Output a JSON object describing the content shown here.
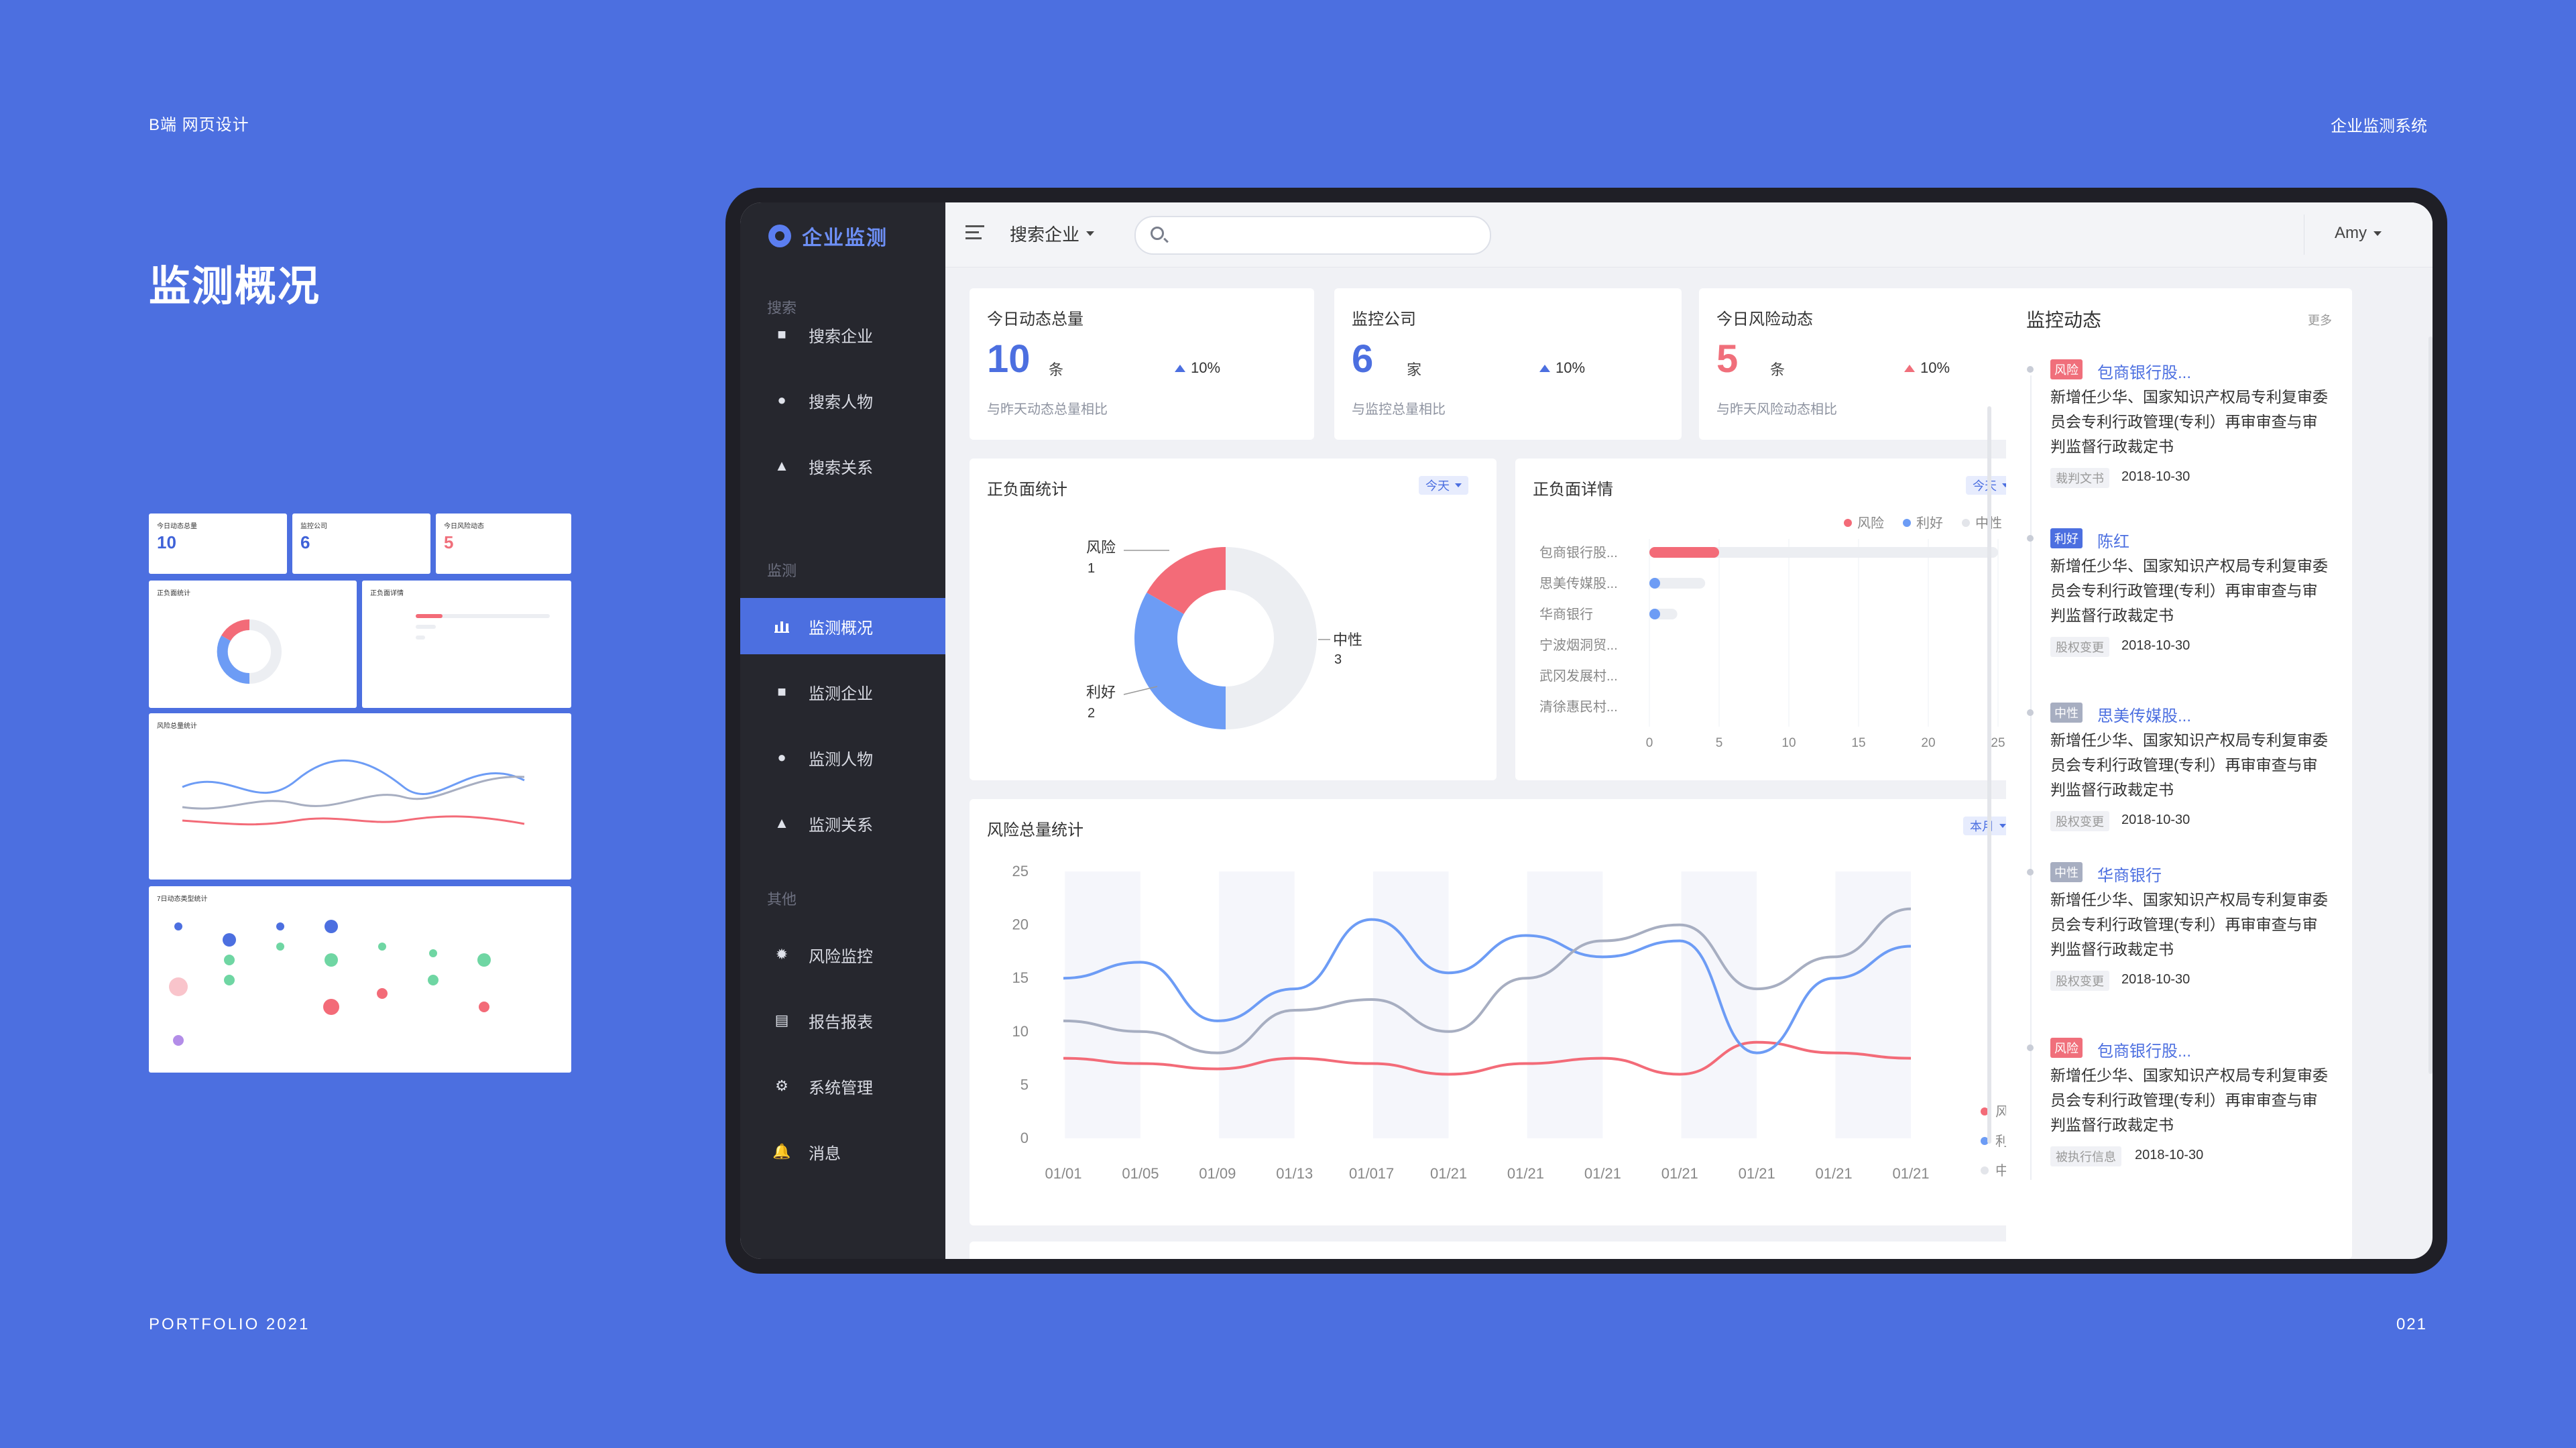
{
  "page": {
    "brand": "B端 网页设计",
    "project": "企业监测系统",
    "heading": "监测概况",
    "footer_left": "PORTFOLIO 2021",
    "page_number": "021"
  },
  "thumbnails": {
    "kpi_titles": [
      "今日动态总量",
      "监控公司",
      "今日风险动态"
    ],
    "kpi_values": [
      "10",
      "6",
      "5"
    ],
    "panel_titles": [
      "正负面统计",
      "正负面详情",
      "风险总量统计",
      "7日动态类型统计"
    ]
  },
  "sidebar": {
    "brand": "企业监测",
    "sections": [
      "搜索",
      "监测",
      "其他"
    ],
    "items": [
      {
        "label": "搜索企业",
        "icon": "building-search-icon"
      },
      {
        "label": "搜索人物",
        "icon": "person-search-icon"
      },
      {
        "label": "搜索关系",
        "icon": "relation-search-icon"
      },
      {
        "label": "监测概况",
        "icon": "bar-chart-icon",
        "active": true
      },
      {
        "label": "监测企业",
        "icon": "building-monitor-icon"
      },
      {
        "label": "监测人物",
        "icon": "people-monitor-icon"
      },
      {
        "label": "监测关系",
        "icon": "relation-monitor-icon"
      },
      {
        "label": "风险监控",
        "icon": "sun-alert-icon"
      },
      {
        "label": "报告报表",
        "icon": "report-icon"
      },
      {
        "label": "系统管理",
        "icon": "gear-icon"
      },
      {
        "label": "消息",
        "icon": "bell-icon"
      }
    ]
  },
  "topbar": {
    "company_select": "搜索企业",
    "search_placeholder": "",
    "user": "Amy"
  },
  "kpis": [
    {
      "title": "今日动态总量",
      "value": "10",
      "unit": "条",
      "trend": "10%",
      "desc": "与昨天动态总量相比",
      "color": "#4c6fe0"
    },
    {
      "title": "监控公司",
      "value": "6",
      "unit": "家",
      "trend": "10%",
      "desc": "与监控总量相比",
      "color": "#4c6fe0"
    },
    {
      "title": "今日风险动态",
      "value": "5",
      "unit": "条",
      "trend": "10%",
      "desc": "与昨天风险动态相比",
      "color": "#f06f7b"
    }
  ],
  "sentiment_stats": {
    "title": "正负面统计",
    "range": "今天",
    "labels": [
      {
        "name": "风险",
        "count": "1"
      },
      {
        "name": "中性",
        "count": "3"
      },
      {
        "name": "利好",
        "count": "2"
      }
    ]
  },
  "sentiment_detail": {
    "title": "正负面详情",
    "range": "今天",
    "legend": [
      "风险",
      "利好",
      "中性"
    ],
    "companies": [
      "包商银行股...",
      "思美传媒股...",
      "华商银行",
      "宁波烟洞贸...",
      "武冈发展村...",
      "清徐惠民村..."
    ],
    "ticks": [
      "0",
      "5",
      "10",
      "15",
      "20",
      "25"
    ]
  },
  "risk_total": {
    "title": "风险总量统计",
    "range": "本月",
    "y_ticks": [
      "25",
      "20",
      "15",
      "10",
      "5",
      "0"
    ],
    "x_ticks": [
      "01/01",
      "01/05",
      "01/09",
      "01/13",
      "01/017",
      "01/21",
      "01/21",
      "01/21",
      "01/21",
      "01/21",
      "01/21",
      "01/21"
    ],
    "legend": [
      "风险",
      "利好",
      "中性"
    ]
  },
  "chart_data": [
    {
      "type": "pie",
      "title": "正负面统计",
      "categories": [
        "风险",
        "中性",
        "利好"
      ],
      "values": [
        1,
        3,
        2
      ],
      "colors": [
        "#f36b78",
        "#eceef2",
        "#6d9cf5"
      ]
    },
    {
      "type": "bar",
      "title": "正负面详情",
      "categories": [
        "包商银行股...",
        "思美传媒股...",
        "华商银行",
        "宁波烟洞贸...",
        "武冈发展村...",
        "清徐惠民村..."
      ],
      "series": [
        {
          "name": "风险",
          "values": [
            5,
            0,
            0,
            0,
            0,
            0
          ]
        },
        {
          "name": "利好",
          "values": [
            1,
            1,
            1,
            0,
            0,
            0
          ]
        },
        {
          "name": "中性",
          "values": [
            19,
            3,
            1,
            0,
            0,
            0
          ]
        }
      ],
      "xlim": [
        0,
        25
      ]
    },
    {
      "type": "line",
      "title": "风险总量统计",
      "x": [
        "01/01",
        "01/05",
        "01/09",
        "01/13",
        "01/017",
        "01/21",
        "01/21",
        "01/21",
        "01/21",
        "01/21",
        "01/21",
        "01/21"
      ],
      "ylim": [
        0,
        25
      ],
      "series": [
        {
          "name": "风险",
          "values": [
            7.5,
            7,
            6.5,
            7.5,
            7,
            6,
            7,
            7.5,
            6,
            9,
            8,
            7.5
          ]
        },
        {
          "name": "利好",
          "values": [
            15,
            16.5,
            11,
            14,
            20.5,
            15.5,
            19,
            17,
            18.5,
            8,
            15,
            18
          ]
        },
        {
          "name": "中性",
          "values": [
            11,
            10,
            8,
            12,
            13,
            10,
            15,
            18.5,
            20,
            14,
            17,
            21.5
          ]
        }
      ]
    }
  ],
  "monitor_feed": {
    "title": "监控动态",
    "more": "更多",
    "items": [
      {
        "tag": "风险",
        "tag_color": "#f06f7b",
        "name": "包商银行股...",
        "body": "新增任少华、国家知识产权局专利复审委员会专利行政管理(专利）再审审查与审判监督行政裁定书",
        "chip": "裁判文书",
        "date": "2018-10-30"
      },
      {
        "tag": "利好",
        "tag_color": "#4c6fe0",
        "name": "陈红",
        "body": "新增任少华、国家知识产权局专利复审委员会专利行政管理(专利）再审审查与审判监督行政裁定书",
        "chip": "股权变更",
        "date": "2018-10-30"
      },
      {
        "tag": "中性",
        "tag_color": "#a7aec1",
        "name": "思美传媒股...",
        "body": "新增任少华、国家知识产权局专利复审委员会专利行政管理(专利）再审审查与审判监督行政裁定书",
        "chip": "股权变更",
        "date": "2018-10-30"
      },
      {
        "tag": "中性",
        "tag_color": "#a7aec1",
        "name": "华商银行",
        "body": "新增任少华、国家知识产权局专利复审委员会专利行政管理(专利）再审审查与审判监督行政裁定书",
        "chip": "股权变更",
        "date": "2018-10-30"
      },
      {
        "tag": "风险",
        "tag_color": "#f06f7b",
        "name": "包商银行股...",
        "body": "新增任少华、国家知识产权局专利复审委员会专利行政管理(专利）再审审查与审判监督行政裁定书",
        "chip": "被执行信息",
        "date": "2018-10-30"
      }
    ]
  }
}
